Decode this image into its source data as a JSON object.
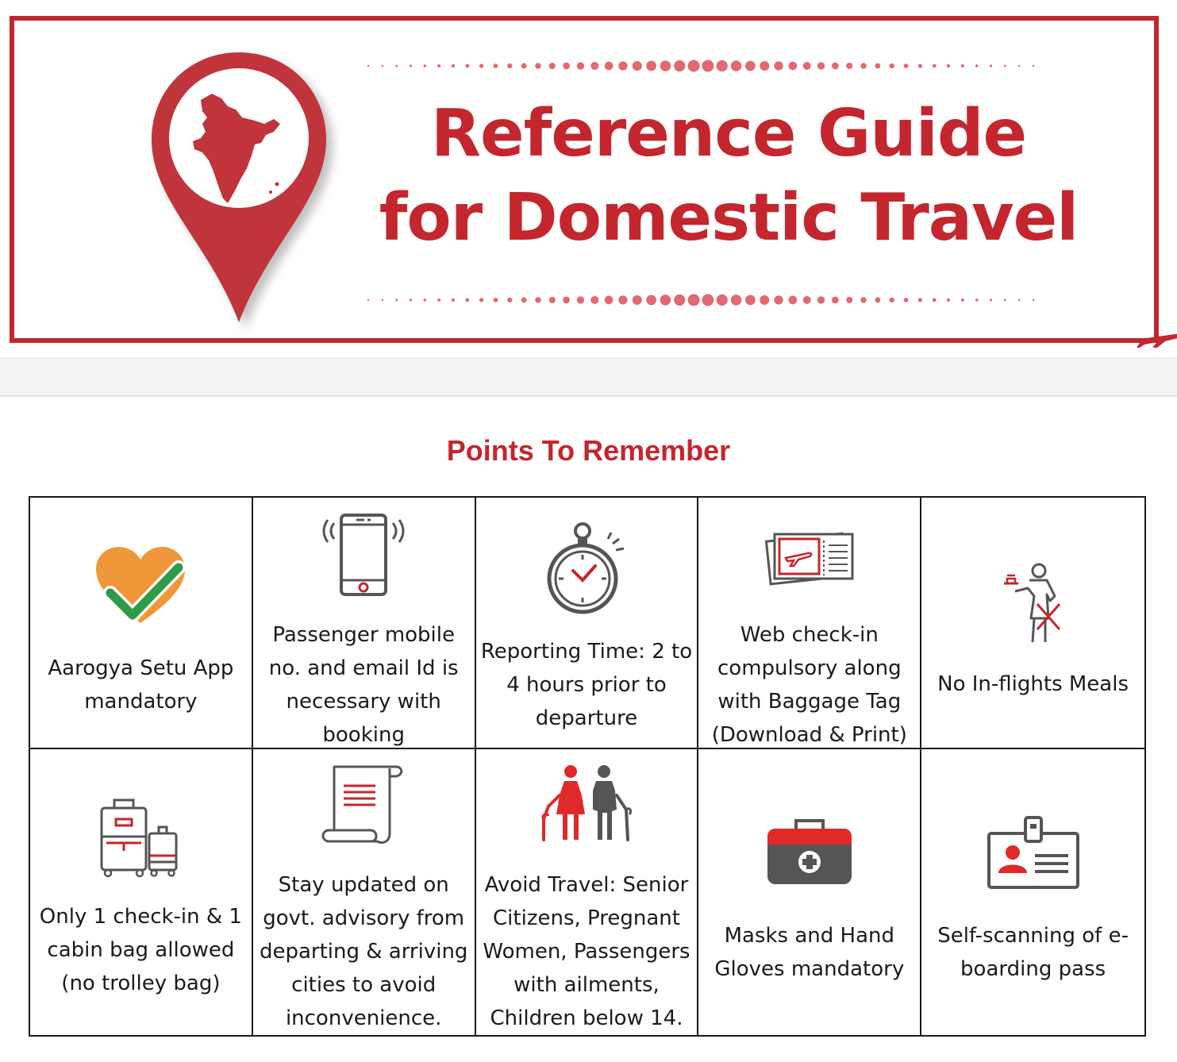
{
  "banner": {
    "title_line1": "Reference Guide",
    "title_line2": "for Domestic Travel",
    "icons": [
      "location-pin-india-map-icon",
      "airplane-icon"
    ]
  },
  "section": {
    "title": "Points To Remember"
  },
  "points": [
    {
      "label": "Aarogya Setu App\nmandatory",
      "icon": "heart-check-icon"
    },
    {
      "label": "Passenger mobile\nno. and email Id is\nnecessary with\nbooking",
      "icon": "mobile-phone-icon"
    },
    {
      "label": "Reporting Time: 2 to\n4 hours prior to\ndeparture",
      "icon": "stopwatch-icon"
    },
    {
      "label": "Web check-in\ncompulsory along\nwith Baggage Tag\n(Download & Print)",
      "icon": "boarding-ticket-icon"
    },
    {
      "label": "No In-flights Meals",
      "icon": "no-meal-icon"
    },
    {
      "label": "Only 1 check-in & 1\ncabin bag allowed\n(no trolley bag)",
      "icon": "luggage-icon"
    },
    {
      "label": "Stay updated on\ngovt. advisory from\ndeparting & arriving\ncities to avoid\ninconvenience.",
      "icon": "scroll-document-icon"
    },
    {
      "label": "Avoid Travel: Senior\nCitizens, Pregnant\nWomen, Passengers\nwith ailments,\nChildren below 14.",
      "icon": "senior-citizens-icon"
    },
    {
      "label": "Masks and Hand\nGloves mandatory",
      "icon": "first-aid-kit-icon"
    },
    {
      "label": "Self-scanning of e-\nboarding pass",
      "icon": "id-badge-icon"
    }
  ],
  "colors": {
    "brand_red": "#c4262e",
    "icon_gray": "#555555",
    "aarogya_orange": "#f0973a",
    "aarogya_green": "#2e9b48"
  }
}
